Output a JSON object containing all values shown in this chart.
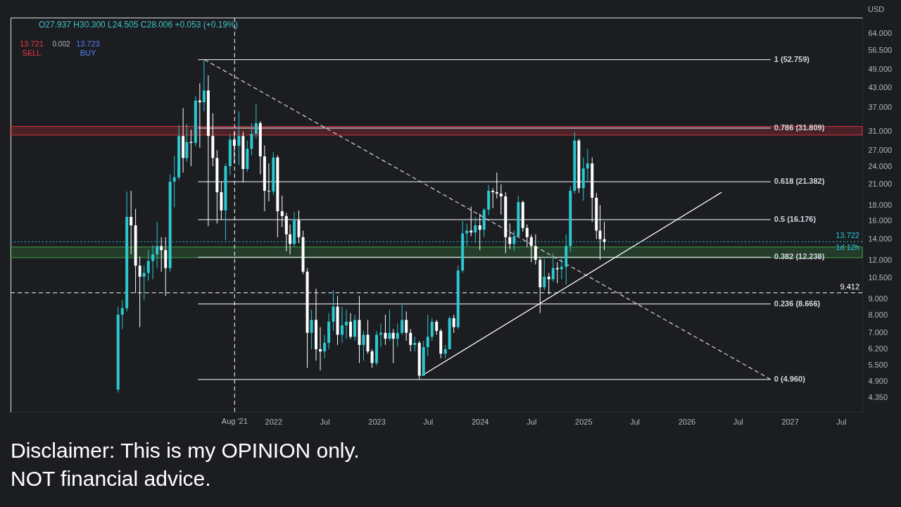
{
  "chart_data": {
    "type": "candlestick",
    "log": true,
    "ylabel": "USD",
    "xlim": [
      "2019-06-17",
      "2027-09-14"
    ],
    "xticks": [
      {
        "value": "2022-01-01",
        "label": "2022"
      },
      {
        "value": "2022-07-01",
        "label": "Jul"
      },
      {
        "value": "2023-01-01",
        "label": "2023"
      },
      {
        "value": "2023-07-01",
        "label": "Jul"
      },
      {
        "value": "2024-01-01",
        "label": "2024"
      },
      {
        "value": "2024-07-01",
        "label": "Jul"
      },
      {
        "value": "2025-01-01",
        "label": "2025"
      },
      {
        "value": "2025-07-01",
        "label": "Jul"
      },
      {
        "value": "2026-01-01",
        "label": "2026"
      },
      {
        "value": "2026-07-01",
        "label": "Jul"
      },
      {
        "value": "2027-01-01",
        "label": "2027"
      },
      {
        "value": "2027-07-01",
        "label": "Jul"
      }
    ],
    "ylim": [
      3.9,
      72
    ],
    "yticks": [
      {
        "value": 4.35,
        "label": "4.350"
      },
      {
        "value": 4.9,
        "label": "4.900"
      },
      {
        "value": 5.5,
        "label": "5.500"
      },
      {
        "value": 6.2,
        "label": "6.200"
      },
      {
        "value": 7,
        "label": "7.000"
      },
      {
        "value": 8,
        "label": "8.000"
      },
      {
        "value": 9,
        "label": "9.000"
      },
      {
        "value": 10.5,
        "label": "10.500"
      },
      {
        "value": 12,
        "label": "12.000"
      },
      {
        "value": 14,
        "label": "14.000"
      },
      {
        "value": 16,
        "label": "16.000"
      },
      {
        "value": 18,
        "label": "18.000"
      },
      {
        "value": 21,
        "label": "21.000"
      },
      {
        "value": 24,
        "label": "24.000"
      },
      {
        "value": 27,
        "label": "27.000"
      },
      {
        "value": 31,
        "label": "31.000"
      },
      {
        "value": 37,
        "label": "37.000"
      },
      {
        "value": 43,
        "label": "43.000"
      },
      {
        "value": 49,
        "label": "49.000"
      },
      {
        "value": 56.5,
        "label": "56.500"
      },
      {
        "value": 64,
        "label": "64.000"
      }
    ],
    "x": [
      "2020-07-01",
      "2020-07-16",
      "2020-08-01",
      "2020-08-16",
      "2020-09-01",
      "2020-09-16",
      "2020-10-01",
      "2020-10-16",
      "2020-11-01",
      "2020-11-16",
      "2020-12-01",
      "2020-12-16",
      "2021-01-01",
      "2021-01-16",
      "2021-02-01",
      "2021-02-16",
      "2021-03-01",
      "2021-03-16",
      "2021-04-01",
      "2021-04-16",
      "2021-05-01",
      "2021-05-16",
      "2021-06-01",
      "2021-06-16",
      "2021-07-01",
      "2021-07-16",
      "2021-08-01",
      "2021-08-16",
      "2021-09-01",
      "2021-09-16",
      "2021-10-01",
      "2021-10-16",
      "2021-11-01",
      "2021-11-16",
      "2021-12-01",
      "2021-12-16",
      "2022-01-01",
      "2022-01-16",
      "2022-02-01",
      "2022-02-16",
      "2022-03-01",
      "2022-03-16",
      "2022-04-01",
      "2022-04-16",
      "2022-05-01",
      "2022-05-16",
      "2022-06-01",
      "2022-06-16",
      "2022-07-01",
      "2022-07-16",
      "2022-08-01",
      "2022-08-16",
      "2022-09-01",
      "2022-09-16",
      "2022-10-01",
      "2022-10-16",
      "2022-11-01",
      "2022-11-16",
      "2022-12-01",
      "2022-12-16",
      "2023-01-01",
      "2023-01-16",
      "2023-02-01",
      "2023-02-16",
      "2023-03-01",
      "2023-03-16",
      "2023-04-01",
      "2023-04-16",
      "2023-05-01",
      "2023-05-16",
      "2023-06-01",
      "2023-06-16",
      "2023-07-01",
      "2023-07-16",
      "2023-08-01",
      "2023-08-16",
      "2023-09-01",
      "2023-09-16",
      "2023-10-01",
      "2023-10-16",
      "2023-11-01",
      "2023-11-16",
      "2023-12-01",
      "2023-12-16",
      "2024-01-01",
      "2024-01-16",
      "2024-02-01",
      "2024-02-16",
      "2024-03-01",
      "2024-03-16",
      "2024-04-01",
      "2024-04-16",
      "2024-05-01",
      "2024-05-16",
      "2024-06-01",
      "2024-06-16",
      "2024-07-01",
      "2024-07-16",
      "2024-08-01",
      "2024-08-16",
      "2024-09-01",
      "2024-09-16",
      "2024-10-01",
      "2024-10-16",
      "2024-11-01",
      "2024-11-16",
      "2024-12-01",
      "2024-12-16",
      "2025-01-01",
      "2025-01-16",
      "2025-02-01",
      "2025-02-16",
      "2025-03-01",
      "2025-03-16"
    ],
    "ohlc": [
      [
        4.6,
        8.5,
        4.5,
        8.0
      ],
      [
        8.0,
        8.9,
        7.2,
        8.4
      ],
      [
        8.4,
        19.9,
        8.2,
        16.5
      ],
      [
        16.5,
        20.0,
        12.5,
        15.5
      ],
      [
        15.5,
        17.5,
        9.4,
        11.5
      ],
      [
        11.5,
        12.3,
        7.3,
        10.6
      ],
      [
        10.6,
        11.5,
        8.9,
        10.9
      ],
      [
        10.9,
        12.9,
        10.3,
        11.9
      ],
      [
        11.9,
        13.4,
        10.4,
        12.5
      ],
      [
        12.5,
        15.9,
        11.3,
        13.3
      ],
      [
        13.3,
        14.2,
        11.0,
        12.9
      ],
      [
        12.9,
        14.2,
        9.2,
        11.3
      ],
      [
        11.3,
        22.6,
        11.0,
        21.4
      ],
      [
        21.4,
        25.9,
        17.7,
        22.1
      ],
      [
        22.1,
        32.5,
        21.7,
        30.0
      ],
      [
        30.0,
        36.9,
        22.9,
        25.5
      ],
      [
        25.5,
        32.8,
        24.8,
        28.7
      ],
      [
        28.7,
        31.4,
        24.0,
        28.5
      ],
      [
        28.5,
        40.2,
        27.8,
        39.0
      ],
      [
        39.0,
        44.3,
        27.5,
        38.5
      ],
      [
        38.5,
        52.76,
        36.0,
        42.0
      ],
      [
        42.0,
        47.0,
        15.4,
        30.0
      ],
      [
        30.0,
        35.5,
        24.0,
        25.5
      ],
      [
        25.5,
        27.0,
        15.7,
        19.8
      ],
      [
        19.8,
        21.4,
        16.2,
        17.3
      ],
      [
        17.3,
        24.5,
        13.9,
        24.0
      ],
      [
        24.0,
        30.4,
        22.5,
        29.2
      ],
      [
        29.2,
        30.9,
        24.5,
        27.9
      ],
      [
        27.9,
        36.0,
        24.2,
        30.0
      ],
      [
        30.0,
        31.0,
        21.3,
        23.5
      ],
      [
        23.5,
        29.0,
        23.0,
        27.3
      ],
      [
        27.3,
        33.0,
        26.0,
        30.5
      ],
      [
        30.5,
        38.1,
        29.5,
        33.0
      ],
      [
        33.0,
        33.5,
        22.6,
        25.8
      ],
      [
        25.8,
        28.0,
        17.2,
        20.0
      ],
      [
        20.0,
        24.5,
        18.5,
        19.9
      ],
      [
        19.9,
        26.7,
        19.4,
        25.6
      ],
      [
        25.6,
        26.0,
        14.2,
        17.2
      ],
      [
        17.2,
        19.3,
        15.3,
        16.6
      ],
      [
        16.6,
        17.0,
        12.8,
        14.5
      ],
      [
        14.5,
        15.6,
        12.5,
        13.5
      ],
      [
        13.5,
        17.1,
        13.2,
        16.1
      ],
      [
        16.1,
        17.3,
        13.6,
        14.2
      ],
      [
        14.2,
        14.9,
        10.8,
        11.0
      ],
      [
        11.0,
        11.3,
        5.4,
        7.0
      ],
      [
        7.0,
        8.3,
        6.2,
        7.7
      ],
      [
        7.7,
        9.7,
        5.7,
        6.2
      ],
      [
        6.2,
        7.3,
        5.3,
        6.1
      ],
      [
        6.1,
        6.9,
        5.8,
        6.5
      ],
      [
        6.5,
        8.1,
        6.2,
        7.6
      ],
      [
        7.6,
        9.6,
        7.1,
        8.5
      ],
      [
        8.5,
        9.2,
        6.4,
        6.9
      ],
      [
        6.9,
        8.5,
        6.5,
        7.4
      ],
      [
        7.4,
        8.3,
        6.7,
        7.6
      ],
      [
        7.6,
        8.1,
        6.7,
        6.8
      ],
      [
        6.8,
        8.0,
        6.6,
        7.7
      ],
      [
        7.7,
        9.2,
        5.6,
        6.4
      ],
      [
        6.4,
        7.1,
        5.7,
        6.9
      ],
      [
        6.9,
        7.7,
        6.0,
        6.1
      ],
      [
        6.1,
        6.2,
        5.4,
        5.6
      ],
      [
        5.6,
        7.1,
        5.5,
        6.9
      ],
      [
        6.9,
        7.5,
        6.3,
        7.0
      ],
      [
        7.0,
        8.0,
        6.4,
        6.7
      ],
      [
        6.7,
        8.3,
        6.6,
        7.0
      ],
      [
        7.0,
        7.2,
        5.6,
        6.7
      ],
      [
        6.7,
        7.5,
        6.3,
        7.0
      ],
      [
        7.0,
        8.6,
        6.9,
        7.7
      ],
      [
        7.7,
        8.2,
        6.6,
        7.0
      ],
      [
        7.0,
        7.2,
        6.1,
        6.4
      ],
      [
        6.4,
        6.8,
        6.1,
        6.5
      ],
      [
        6.5,
        6.6,
        4.96,
        5.1
      ],
      [
        5.1,
        6.6,
        5.1,
        6.3
      ],
      [
        6.3,
        8.0,
        5.9,
        6.8
      ],
      [
        6.8,
        7.8,
        6.6,
        7.6
      ],
      [
        7.6,
        7.7,
        6.9,
        7.1
      ],
      [
        7.1,
        7.2,
        5.8,
        6.0
      ],
      [
        6.0,
        6.4,
        5.8,
        6.2
      ],
      [
        6.2,
        7.9,
        6.2,
        7.8
      ],
      [
        7.8,
        8.0,
        7.0,
        7.3
      ],
      [
        7.3,
        11.5,
        7.2,
        11.1
      ],
      [
        11.1,
        16.0,
        10.9,
        14.6
      ],
      [
        14.6,
        15.7,
        13.3,
        14.9
      ],
      [
        14.9,
        17.8,
        14.3,
        14.7
      ],
      [
        14.7,
        16.5,
        13.6,
        15.5
      ],
      [
        15.5,
        16.9,
        12.9,
        15.0
      ],
      [
        15.0,
        17.6,
        14.2,
        17.4
      ],
      [
        17.4,
        20.9,
        16.7,
        20.0
      ],
      [
        20.0,
        20.4,
        17.6,
        19.8
      ],
      [
        19.8,
        22.9,
        18.9,
        19.6
      ],
      [
        19.6,
        21.0,
        16.8,
        19.2
      ],
      [
        19.2,
        19.8,
        12.6,
        14.2
      ],
      [
        14.2,
        15.7,
        13.0,
        13.5
      ],
      [
        13.5,
        14.9,
        12.8,
        14.3
      ],
      [
        14.3,
        19.3,
        14.2,
        18.4
      ],
      [
        18.4,
        18.6,
        14.8,
        15.2
      ],
      [
        15.2,
        15.6,
        13.2,
        14.2
      ],
      [
        14.2,
        14.5,
        11.8,
        13.3
      ],
      [
        13.3,
        14.5,
        11.6,
        12.0
      ],
      [
        12.0,
        12.2,
        8.1,
        9.8
      ],
      [
        9.8,
        12.1,
        9.6,
        10.6
      ],
      [
        10.6,
        10.9,
        9.3,
        10.4
      ],
      [
        10.4,
        12.6,
        10.2,
        11.3
      ],
      [
        11.3,
        11.8,
        10.1,
        11.2
      ],
      [
        11.2,
        12.2,
        10.4,
        11.4
      ],
      [
        11.4,
        14.5,
        10.0,
        13.3
      ],
      [
        13.3,
        20.7,
        12.7,
        20.0
      ],
      [
        20.0,
        30.9,
        19.6,
        29.0
      ],
      [
        29.0,
        29.4,
        19.7,
        20.4
      ],
      [
        20.4,
        25.6,
        18.6,
        23.6
      ],
      [
        23.6,
        27.3,
        21.5,
        24.5
      ],
      [
        24.5,
        25.6,
        15.9,
        19.0
      ],
      [
        19.0,
        19.7,
        14.0,
        14.9
      ],
      [
        14.9,
        18.0,
        12.0,
        14.0
      ],
      [
        14.0,
        15.9,
        12.9,
        13.722
      ]
    ],
    "colors": [
      "#2bc8cf",
      "#2bc8cf",
      "#2bc8cf",
      "#ffffff",
      "#ffffff",
      "#ffffff",
      "#2bc8cf",
      "#2bc8cf",
      "#2bc8cf",
      "#2bc8cf",
      "#ffffff",
      "#ffffff",
      "#2bc8cf",
      "#2bc8cf",
      "#2bc8cf",
      "#ffffff",
      "#2bc8cf",
      "#ffffff",
      "#2bc8cf",
      "#ffffff",
      "#2bc8cf",
      "#ffffff",
      "#ffffff",
      "#ffffff",
      "#ffffff",
      "#2bc8cf",
      "#2bc8cf",
      "#ffffff",
      "#2bc8cf",
      "#ffffff",
      "#2bc8cf",
      "#2bc8cf",
      "#2bc8cf",
      "#ffffff",
      "#ffffff",
      "#ffffff",
      "#2bc8cf",
      "#ffffff",
      "#ffffff",
      "#ffffff",
      "#ffffff",
      "#2bc8cf",
      "#ffffff",
      "#ffffff",
      "#ffffff",
      "#2bc8cf",
      "#ffffff",
      "#ffffff",
      "#2bc8cf",
      "#2bc8cf",
      "#2bc8cf",
      "#ffffff",
      "#2bc8cf",
      "#2bc8cf",
      "#ffffff",
      "#2bc8cf",
      "#ffffff",
      "#2bc8cf",
      "#ffffff",
      "#ffffff",
      "#2bc8cf",
      "#2bc8cf",
      "#ffffff",
      "#2bc8cf",
      "#ffffff",
      "#2bc8cf",
      "#2bc8cf",
      "#ffffff",
      "#ffffff",
      "#2bc8cf",
      "#ffffff",
      "#2bc8cf",
      "#2bc8cf",
      "#2bc8cf",
      "#ffffff",
      "#ffffff",
      "#2bc8cf",
      "#2bc8cf",
      "#ffffff",
      "#2bc8cf",
      "#2bc8cf",
      "#2bc8cf",
      "#ffffff",
      "#2bc8cf",
      "#ffffff",
      "#2bc8cf",
      "#2bc8cf",
      "#ffffff",
      "#ffffff",
      "#ffffff",
      "#ffffff",
      "#ffffff",
      "#2bc8cf",
      "#2bc8cf",
      "#ffffff",
      "#ffffff",
      "#ffffff",
      "#ffffff",
      "#ffffff",
      "#2bc8cf",
      "#ffffff",
      "#2bc8cf",
      "#ffffff",
      "#2bc8cf",
      "#2bc8cf",
      "#2bc8cf",
      "#2bc8cf",
      "#ffffff",
      "#2bc8cf",
      "#2bc8cf",
      "#ffffff",
      "#ffffff",
      "#ffffff",
      "#ffffff"
    ],
    "series": [
      {
        "type": "line",
        "name": "1 (52.759)",
        "x": [
          "2021-04-10",
          "2026-10-25"
        ],
        "values": [
          52.759,
          52.759
        ],
        "color": "#d1d4dc"
      },
      {
        "type": "line",
        "name": "0.786 (31.809)",
        "x": [
          "2021-04-10",
          "2026-10-25"
        ],
        "values": [
          31.809,
          31.809
        ],
        "color": "#d1d4dc"
      },
      {
        "type": "line",
        "name": "0.618 (21.382)",
        "x": [
          "2021-04-10",
          "2026-10-25"
        ],
        "values": [
          21.382,
          21.382
        ],
        "color": "#d1d4dc"
      },
      {
        "type": "line",
        "name": "0.5 (16.176)",
        "x": [
          "2021-04-10",
          "2026-10-25"
        ],
        "values": [
          16.176,
          16.176
        ],
        "color": "#d1d4dc"
      },
      {
        "type": "line",
        "name": "0.382 (12.238)",
        "x": [
          "2021-04-10",
          "2026-10-25"
        ],
        "values": [
          12.238,
          12.238
        ],
        "color": "#d1d4dc"
      },
      {
        "type": "line",
        "name": "0.236 (8.666)",
        "x": [
          "2021-04-10",
          "2026-10-25"
        ],
        "values": [
          8.666,
          8.666
        ],
        "color": "#d1d4dc"
      },
      {
        "type": "line",
        "name": "0 (4.960)",
        "x": [
          "2021-04-10",
          "2026-10-25"
        ],
        "values": [
          4.96,
          4.96
        ],
        "color": "#d1d4dc"
      },
      {
        "type": "line",
        "x": [
          "2021-05-03",
          "2026-10-25"
        ],
        "values": [
          52.759,
          4.96
        ],
        "color": "#c8c8c8",
        "line_style": "dashed"
      },
      {
        "type": "line",
        "x": [
          "2023-06-10",
          "2026-05-05"
        ],
        "values": [
          5.1,
          19.8
        ],
        "color": "#ffffff"
      }
    ],
    "bands": [
      {
        "axis": "y",
        "from": 12.2,
        "to": 13.2,
        "color": "#4caf50"
      },
      {
        "axis": "y",
        "from": 30.2,
        "to": 32.2,
        "color": "#f23645"
      }
    ],
    "ref_lines": [
      {
        "axis": "y",
        "value": 13.722,
        "label": "13.722",
        "color": "#26c6da",
        "line_style": "dotted"
      },
      {
        "axis": "y",
        "value": 9.412,
        "label": "9.412",
        "color": "#ffffff",
        "line_style": "dashed"
      },
      {
        "axis": "x",
        "value": "2021-08-17",
        "label": "Aug '21",
        "color": "#ffffff",
        "line_style": "dashed"
      }
    ],
    "annotations": [
      "O27.937 H30.300 L24.505 C28.006 +0.053 (+0.19%)",
      "13.721 SELL",
      "0.002",
      "13.723 BUY",
      "Disclaimer: This is my OPINION only.",
      "NOT financial advice.",
      {
        "text": "1d 12h",
        "y": 13.722
      }
    ]
  }
}
